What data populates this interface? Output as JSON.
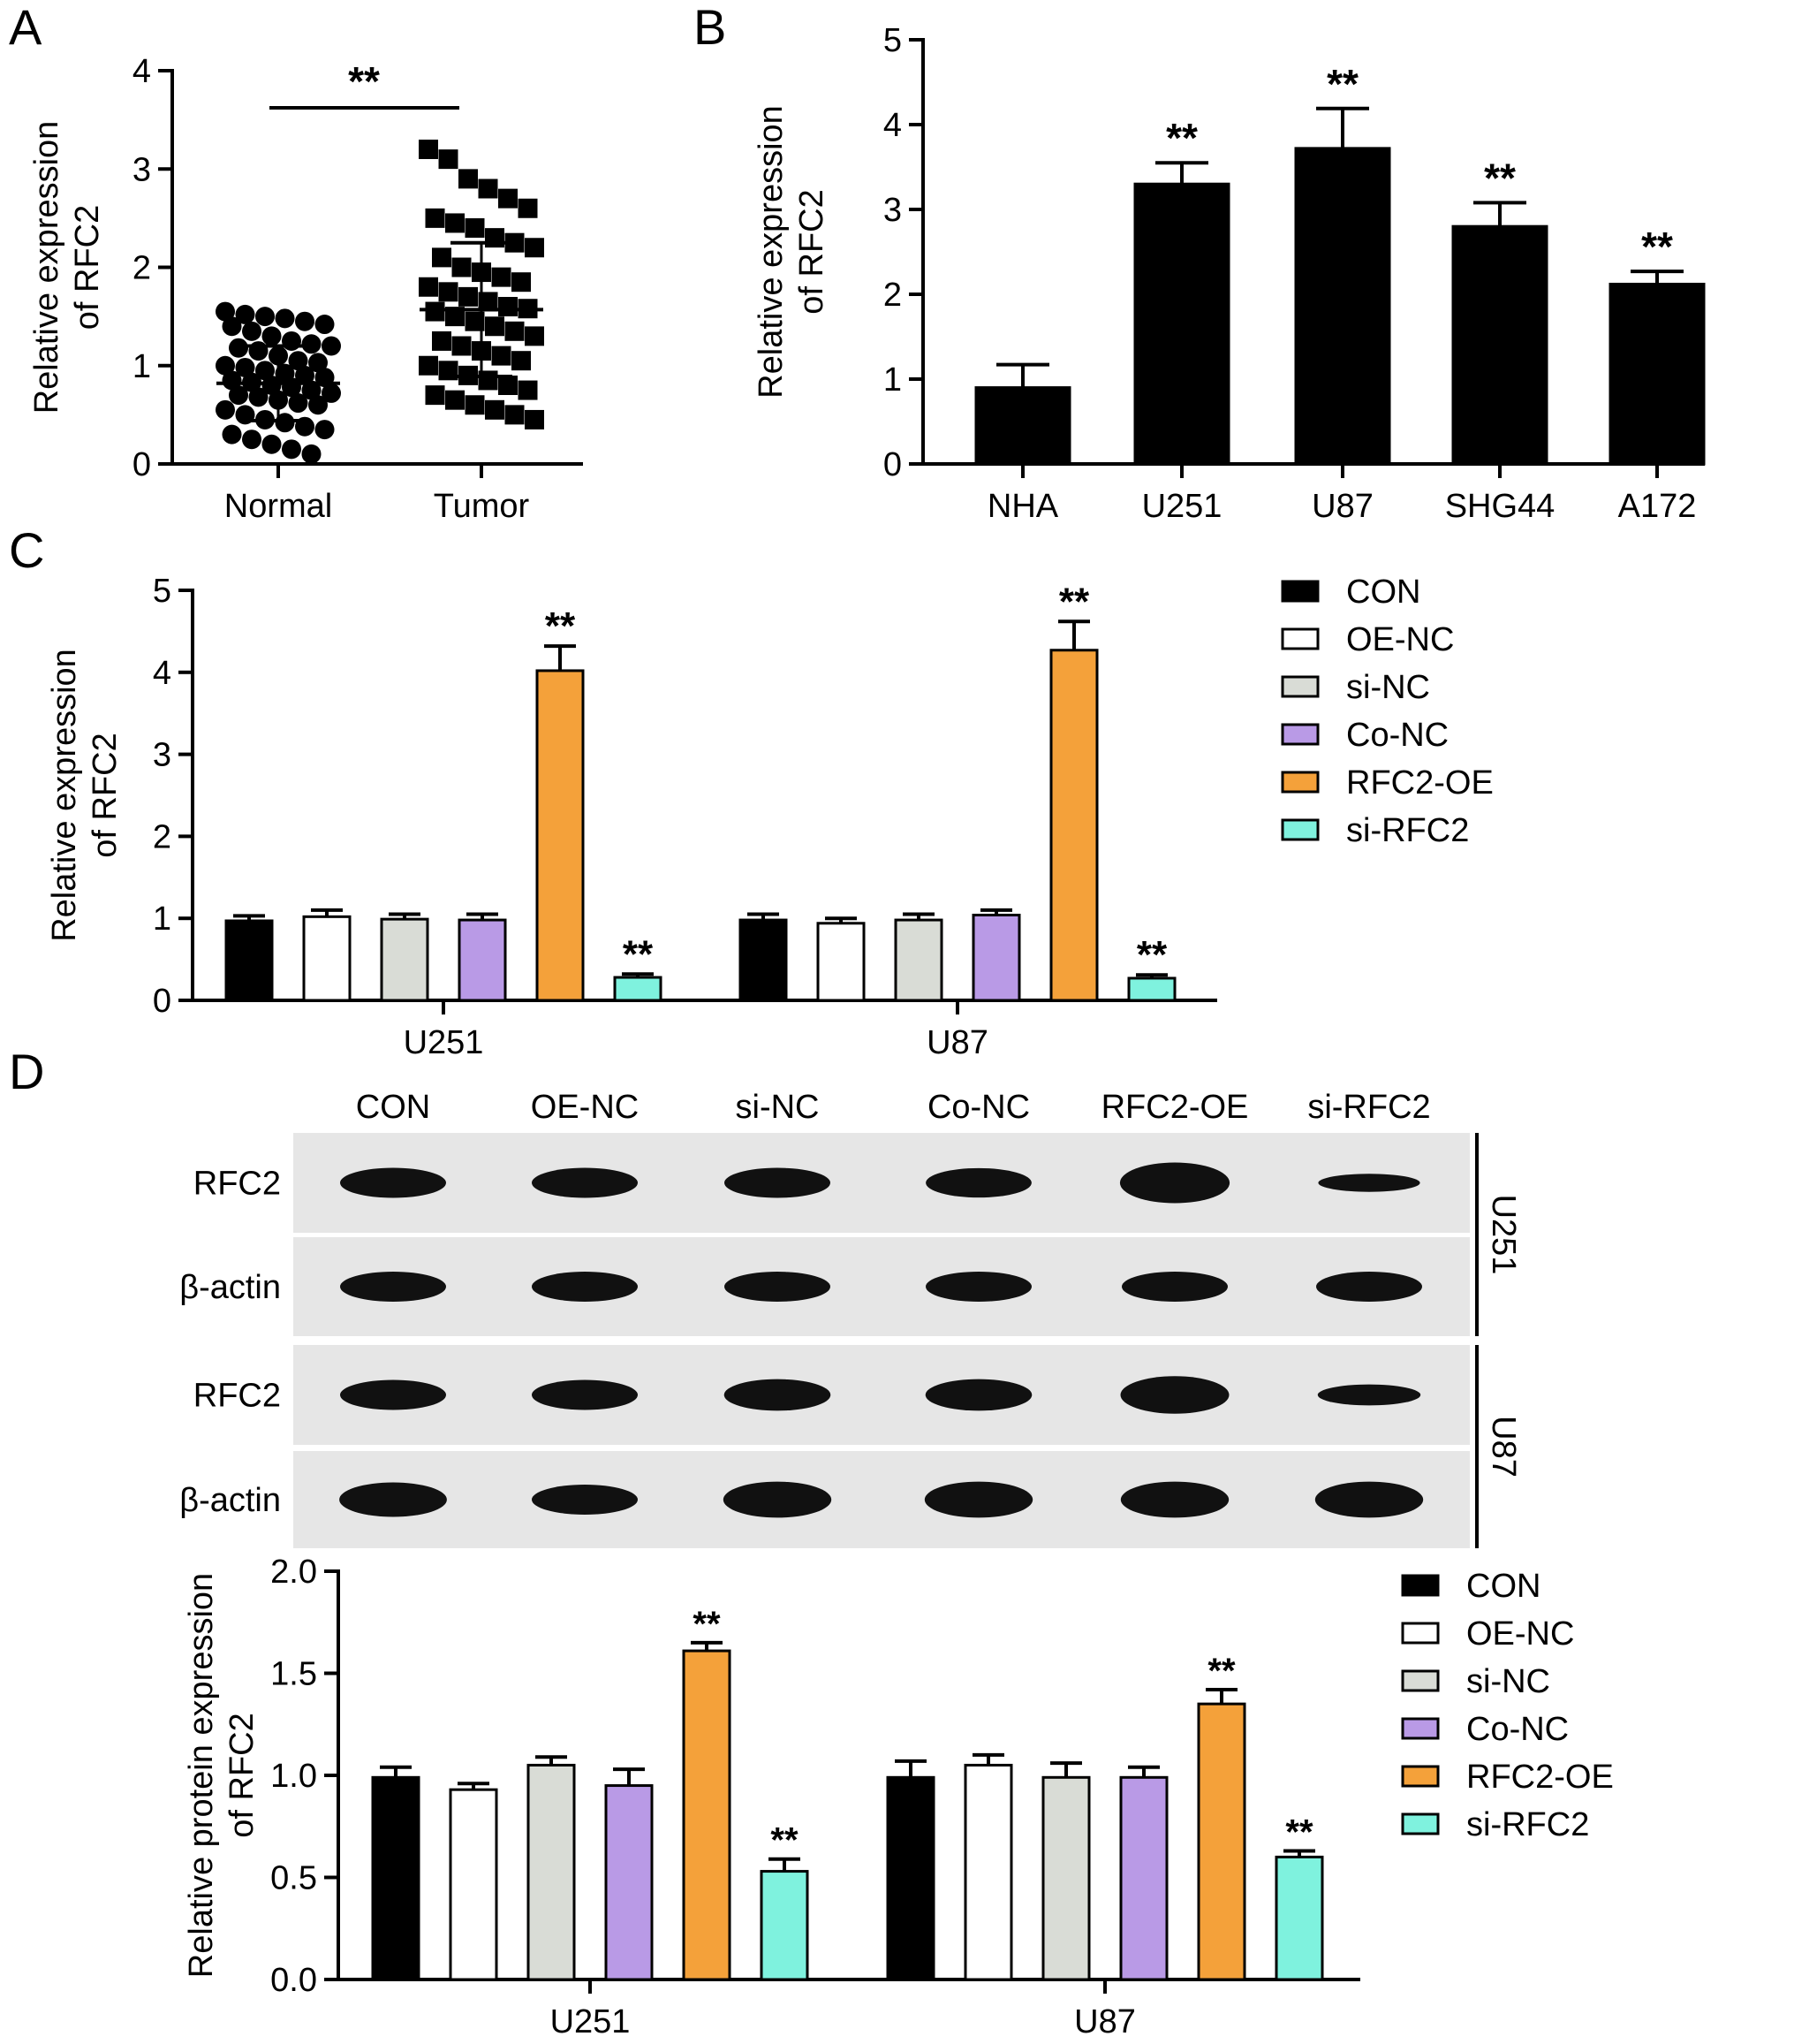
{
  "panel_letters": [
    "A",
    "B",
    "C",
    "D"
  ],
  "colors": {
    "CON": "#000000",
    "OE-NC": "#ffffff",
    "si-NC": "#d9dcd6",
    "Co-NC": "#b99ae6",
    "RFC2-OE": "#f4a13a",
    "si-RFC2": "#7ff2de",
    "blot_background": "#e6e6e6",
    "band": "#111111"
  },
  "chart_data": [
    {
      "id": "A",
      "type": "scatter",
      "ylabel": "Relative expression of RFC2",
      "ylabel_lines": [
        "Relative expression",
        "of RFC2"
      ],
      "categories": [
        "Normal",
        "Tumor"
      ],
      "ylim": [
        0,
        4
      ],
      "yticks": [
        "0",
        "1",
        "2",
        "3",
        "4"
      ],
      "significance": "**",
      "groups": [
        {
          "name": "Normal",
          "marker": "circle",
          "mean": 0.82,
          "sd": 0.38,
          "values": [
            1.55,
            1.52,
            1.5,
            1.48,
            1.45,
            1.42,
            1.4,
            1.35,
            1.3,
            1.25,
            1.22,
            1.2,
            1.18,
            1.15,
            1.1,
            1.05,
            1.03,
            1.0,
            0.98,
            0.95,
            0.92,
            0.9,
            0.88,
            0.85,
            0.83,
            0.8,
            0.78,
            0.75,
            0.72,
            0.7,
            0.68,
            0.65,
            0.62,
            0.6,
            0.55,
            0.5,
            0.45,
            0.42,
            0.38,
            0.35,
            0.3,
            0.25,
            0.2,
            0.15,
            0.1
          ]
        },
        {
          "name": "Tumor",
          "marker": "square",
          "mean": 1.57,
          "sd": 0.68,
          "values": [
            3.2,
            3.1,
            2.9,
            2.8,
            2.7,
            2.6,
            2.5,
            2.45,
            2.4,
            2.3,
            2.25,
            2.2,
            2.1,
            2.0,
            1.95,
            1.9,
            1.85,
            1.8,
            1.75,
            1.7,
            1.65,
            1.6,
            1.58,
            1.55,
            1.5,
            1.45,
            1.4,
            1.35,
            1.3,
            1.25,
            1.2,
            1.15,
            1.1,
            1.05,
            1.0,
            0.95,
            0.9,
            0.85,
            0.8,
            0.75,
            0.7,
            0.65,
            0.6,
            0.55,
            0.5,
            0.45
          ]
        }
      ]
    },
    {
      "id": "B",
      "type": "bar",
      "ylabel": "Relative expression of RFC2",
      "ylabel_lines": [
        "Relative expression",
        "of RFC2"
      ],
      "categories": [
        "NHA",
        "U251",
        "U87",
        "SHG44",
        "A172"
      ],
      "values": [
        0.9,
        3.3,
        3.72,
        2.8,
        2.12
      ],
      "errors": [
        0.27,
        0.25,
        0.47,
        0.28,
        0.15
      ],
      "significance": [
        "",
        "**",
        "**",
        "**",
        "**"
      ],
      "ylim": [
        0,
        5
      ],
      "yticks": [
        "0",
        "1",
        "2",
        "3",
        "4",
        "5"
      ]
    },
    {
      "id": "C",
      "type": "bar",
      "ylabel": "Relative expression of RFC2",
      "ylabel_lines": [
        "Relative expression",
        "of RFC2"
      ],
      "categories": [
        "U251",
        "U87"
      ],
      "legend": [
        "CON",
        "OE-NC",
        "si-NC",
        "Co-NC",
        "RFC2-OE",
        "si-RFC2"
      ],
      "legend_position": "right",
      "series": [
        {
          "name": "CON",
          "values": [
            0.97,
            0.98
          ],
          "errors": [
            0.06,
            0.07
          ]
        },
        {
          "name": "OE-NC",
          "values": [
            1.02,
            0.94
          ],
          "errors": [
            0.08,
            0.06
          ]
        },
        {
          "name": "si-NC",
          "values": [
            0.99,
            0.98
          ],
          "errors": [
            0.06,
            0.07
          ]
        },
        {
          "name": "Co-NC",
          "values": [
            0.98,
            1.04
          ],
          "errors": [
            0.07,
            0.06
          ]
        },
        {
          "name": "RFC2-OE",
          "values": [
            4.02,
            4.27
          ],
          "errors": [
            0.3,
            0.35
          ]
        },
        {
          "name": "si-RFC2",
          "values": [
            0.28,
            0.27
          ],
          "errors": [
            0.04,
            0.04
          ]
        }
      ],
      "significance": [
        [
          "",
          "",
          "",
          "",
          "**",
          "**"
        ],
        [
          "",
          "",
          "",
          "",
          "**",
          "**"
        ]
      ],
      "ylim": [
        0,
        5
      ],
      "yticks": [
        "0",
        "1",
        "2",
        "3",
        "4",
        "5"
      ]
    },
    {
      "id": "D",
      "type": "bar",
      "ylabel": "Relative protein expression of RFC2",
      "ylabel_lines": [
        "Relative protein expression",
        "of RFC2"
      ],
      "categories": [
        "U251",
        "U87"
      ],
      "legend": [
        "CON",
        "OE-NC",
        "si-NC",
        "Co-NC",
        "RFC2-OE",
        "si-RFC2"
      ],
      "legend_position": "right",
      "series": [
        {
          "name": "CON",
          "values": [
            0.99,
            0.99
          ],
          "errors": [
            0.05,
            0.08
          ]
        },
        {
          "name": "OE-NC",
          "values": [
            0.93,
            1.05
          ],
          "errors": [
            0.03,
            0.05
          ]
        },
        {
          "name": "si-NC",
          "values": [
            1.05,
            0.99
          ],
          "errors": [
            0.04,
            0.07
          ]
        },
        {
          "name": "Co-NC",
          "values": [
            0.95,
            0.99
          ],
          "errors": [
            0.08,
            0.05
          ]
        },
        {
          "name": "RFC2-OE",
          "values": [
            1.61,
            1.35
          ],
          "errors": [
            0.04,
            0.07
          ]
        },
        {
          "name": "si-RFC2",
          "values": [
            0.53,
            0.6
          ],
          "errors": [
            0.06,
            0.03
          ]
        }
      ],
      "significance": [
        [
          "",
          "",
          "",
          "",
          "**",
          "**"
        ],
        [
          "",
          "",
          "",
          "",
          "**",
          "**"
        ]
      ],
      "ylim": [
        0,
        2.0
      ],
      "yticks": [
        "0.0",
        "0.5",
        "1.0",
        "1.5",
        "2.0"
      ]
    }
  ],
  "blot": {
    "lanes": [
      "CON",
      "OE-NC",
      "si-NC",
      "Co-NC",
      "RFC2-OE",
      "si-RFC2"
    ],
    "groups": [
      {
        "cell_line": "U251",
        "rows": [
          {
            "label": "RFC2",
            "intensity": [
              1.0,
              1.0,
              1.0,
              0.98,
              1.35,
              0.6
            ]
          },
          {
            "label": "β-actin",
            "intensity": [
              1.0,
              1.0,
              1.0,
              1.0,
              1.0,
              1.0
            ]
          }
        ]
      },
      {
        "cell_line": "U87",
        "rows": [
          {
            "label": "RFC2",
            "intensity": [
              1.0,
              1.0,
              1.05,
              1.05,
              1.25,
              0.7
            ]
          },
          {
            "label": "β-actin",
            "intensity": [
              1.15,
              1.0,
              1.2,
              1.2,
              1.2,
              1.2
            ]
          }
        ]
      }
    ]
  }
}
